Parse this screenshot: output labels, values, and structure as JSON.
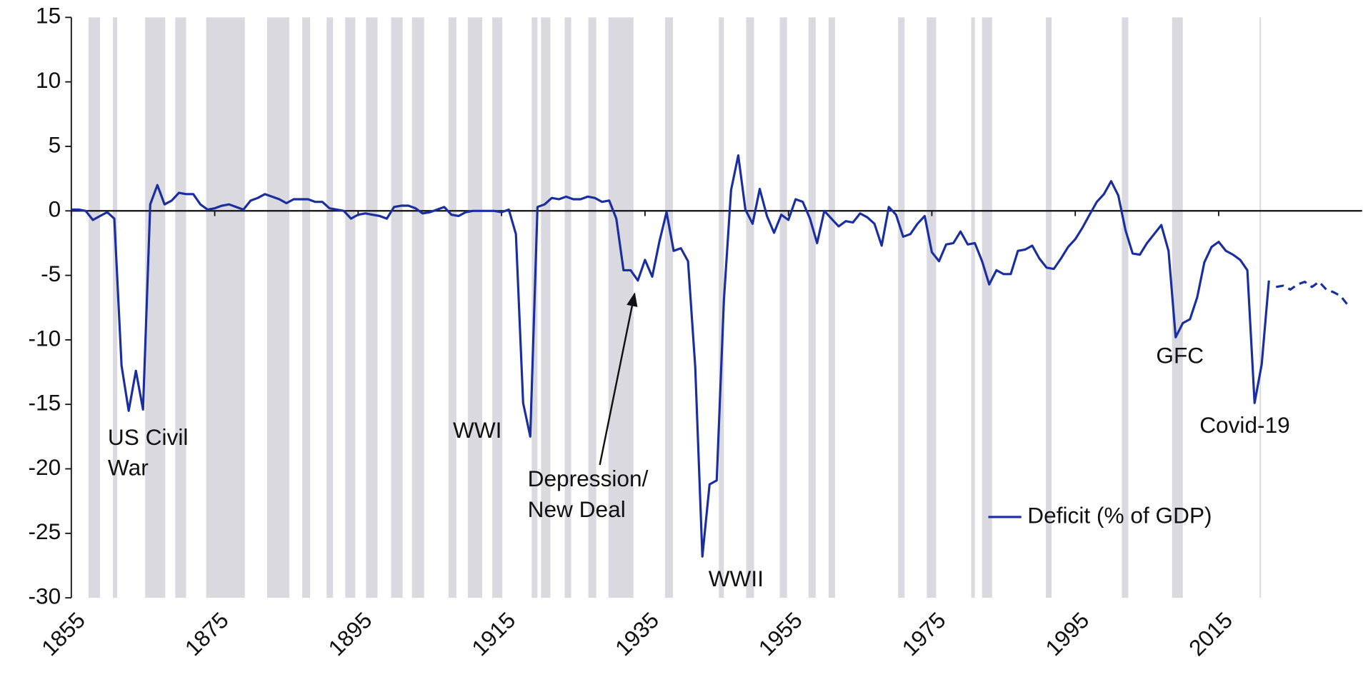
{
  "chart_data": {
    "type": "line",
    "x": [
      1855,
      1856,
      1857,
      1858,
      1859,
      1860,
      1861,
      1862,
      1863,
      1864,
      1865,
      1866,
      1867,
      1868,
      1869,
      1870,
      1871,
      1872,
      1873,
      1874,
      1875,
      1876,
      1877,
      1878,
      1879,
      1880,
      1881,
      1882,
      1883,
      1884,
      1885,
      1886,
      1887,
      1888,
      1889,
      1890,
      1891,
      1892,
      1893,
      1894,
      1895,
      1896,
      1897,
      1898,
      1899,
      1900,
      1901,
      1902,
      1903,
      1904,
      1905,
      1906,
      1907,
      1908,
      1909,
      1910,
      1911,
      1912,
      1913,
      1914,
      1915,
      1916,
      1917,
      1918,
      1919,
      1920,
      1921,
      1922,
      1923,
      1924,
      1925,
      1926,
      1927,
      1928,
      1929,
      1930,
      1931,
      1932,
      1933,
      1934,
      1935,
      1936,
      1937,
      1938,
      1939,
      1940,
      1941,
      1942,
      1943,
      1944,
      1945,
      1946,
      1947,
      1948,
      1949,
      1950,
      1951,
      1952,
      1953,
      1954,
      1955,
      1956,
      1957,
      1958,
      1959,
      1960,
      1961,
      1962,
      1963,
      1964,
      1965,
      1966,
      1967,
      1968,
      1969,
      1970,
      1971,
      1972,
      1973,
      1974,
      1975,
      1976,
      1977,
      1978,
      1979,
      1980,
      1981,
      1982,
      1983,
      1984,
      1985,
      1986,
      1987,
      1988,
      1989,
      1990,
      1991,
      1992,
      1993,
      1994,
      1995,
      1996,
      1997,
      1998,
      1999,
      2000,
      2001,
      2002,
      2003,
      2004,
      2005,
      2006,
      2007,
      2008,
      2009,
      2010,
      2011,
      2012,
      2013,
      2014,
      2015,
      2016,
      2017,
      2018,
      2019,
      2020,
      2021,
      2022,
      2023,
      2024,
      2025,
      2026,
      2027,
      2028,
      2029,
      2030,
      2031,
      2032,
      2033
    ],
    "series": [
      {
        "name": "Deficit (% of GDP)",
        "color": "#1a2ea0",
        "values": [
          0.1,
          0.1,
          0,
          -0.7,
          -0.4,
          -0.1,
          -0.6,
          -12,
          -15.5,
          -12.4,
          -15.4,
          0.5,
          2.0,
          0.5,
          0.8,
          1.4,
          1.3,
          1.3,
          0.5,
          0.1,
          0.2,
          0.4,
          0.5,
          0.3,
          0.1,
          0.8,
          1.0,
          1.3,
          1.1,
          0.9,
          0.6,
          0.9,
          0.9,
          0.9,
          0.7,
          0.7,
          0.2,
          0.1,
          0.0,
          -0.6,
          -0.3,
          -0.2,
          -0.3,
          -0.4,
          -0.6,
          0.3,
          0.4,
          0.4,
          0.2,
          -0.2,
          -0.1,
          0.1,
          0.3,
          -0.3,
          -0.4,
          -0.1,
          0,
          0,
          0,
          0,
          -0.1,
          0.1,
          -1.8,
          -14.9,
          -17.5,
          0.3,
          0.5,
          1.0,
          0.9,
          1.1,
          0.9,
          0.9,
          1.1,
          1.0,
          0.7,
          0.8,
          -0.6,
          -4.6,
          -4.6,
          -5.4,
          -3.8,
          -5.1,
          -2.4,
          -0.1,
          -3.1,
          -2.9,
          -3.9,
          -12.1,
          -26.8,
          -21.2,
          -20.9,
          -6.9,
          1.6,
          4.3,
          0.1,
          -1.0,
          1.7,
          -0.4,
          -1.7,
          -0.3,
          -0.7,
          0.9,
          0.7,
          -0.6,
          -2.5,
          0.0,
          -0.6,
          -1.2,
          -0.8,
          -0.9,
          -0.2,
          -0.5,
          -1.0,
          -2.7,
          0.3,
          -0.3,
          -2.0,
          -1.8,
          -1.0,
          -0.4,
          -3.2,
          -3.9,
          -2.6,
          -2.5,
          -1.6,
          -2.6,
          -2.5,
          -3.9,
          -5.7,
          -4.6,
          -4.9,
          -4.9,
          -3.1,
          -3.0,
          -2.7,
          -3.7,
          -4.4,
          -4.5,
          -3.7,
          -2.8,
          -2.2,
          -1.3,
          -0.3,
          0.7,
          1.3,
          2.3,
          1.2,
          -1.5,
          -3.3,
          -3.4,
          -2.5,
          -1.8,
          -1.1,
          -3.1,
          -9.8,
          -8.7,
          -8.4,
          -6.7,
          -4.0,
          -2.8,
          -2.4,
          -3.1,
          -3.4,
          -3.8,
          -4.6,
          -14.9,
          -11.9,
          -5.4,
          null,
          null,
          null,
          null,
          null,
          null,
          null,
          null,
          null,
          null,
          null
        ]
      },
      {
        "color": "#1a2ea0",
        "dash": true,
        "values": [
          null,
          null,
          null,
          null,
          null,
          null,
          null,
          null,
          null,
          null,
          null,
          null,
          null,
          null,
          null,
          null,
          null,
          null,
          null,
          null,
          null,
          null,
          null,
          null,
          null,
          null,
          null,
          null,
          null,
          null,
          null,
          null,
          null,
          null,
          null,
          null,
          null,
          null,
          null,
          null,
          null,
          null,
          null,
          null,
          null,
          null,
          null,
          null,
          null,
          null,
          null,
          null,
          null,
          null,
          null,
          null,
          null,
          null,
          null,
          null,
          null,
          null,
          null,
          null,
          null,
          null,
          null,
          null,
          null,
          null,
          null,
          null,
          null,
          null,
          null,
          null,
          null,
          null,
          null,
          null,
          null,
          null,
          null,
          null,
          null,
          null,
          null,
          null,
          null,
          null,
          null,
          null,
          null,
          null,
          null,
          null,
          null,
          null,
          null,
          null,
          null,
          null,
          null,
          null,
          null,
          null,
          null,
          null,
          null,
          null,
          null,
          null,
          null,
          null,
          null,
          null,
          null,
          null,
          null,
          null,
          null,
          null,
          null,
          null,
          null,
          null,
          null,
          null,
          null,
          null,
          null,
          null,
          null,
          null,
          null,
          null,
          null,
          null,
          null,
          null,
          null,
          null,
          null,
          null,
          null,
          null,
          null,
          null,
          null,
          null,
          null,
          null,
          null,
          null,
          null,
          null,
          null,
          null,
          null,
          null,
          null,
          null,
          null,
          null,
          null,
          null,
          null,
          null,
          -5.9,
          -5.8,
          -6.1,
          -5.7,
          -5.5,
          -5.9,
          -5.5,
          -6.1,
          -6.3,
          -6.6,
          -7.3
        ]
      }
    ],
    "shaded_periods": [
      [
        1857.4,
        1859
      ],
      [
        1860.8,
        1861.4
      ],
      [
        1865.3,
        1868.1
      ],
      [
        1869.5,
        1871
      ],
      [
        1873.8,
        1879.2
      ],
      [
        1882.3,
        1885.4
      ],
      [
        1887.2,
        1888.3
      ],
      [
        1890.6,
        1891.5
      ],
      [
        1893.2,
        1894.6
      ],
      [
        1896.1,
        1897.7
      ],
      [
        1899.6,
        1901.2
      ],
      [
        1902.5,
        1904.2
      ],
      [
        1907.6,
        1908.7
      ],
      [
        1910.3,
        1912.3
      ],
      [
        1913.7,
        1915.1
      ],
      [
        1919.2,
        1920
      ],
      [
        1920.5,
        1921.8
      ],
      [
        1923.8,
        1924.7
      ],
      [
        1927.1,
        1928.2
      ],
      [
        1929.9,
        1933.4
      ],
      [
        1937.8,
        1938.9
      ],
      [
        1945.3,
        1946
      ],
      [
        1949.1,
        1950.2
      ],
      [
        1953.8,
        1954.8
      ],
      [
        1957.8,
        1958.8
      ],
      [
        1960.6,
        1961.5
      ],
      [
        1970.3,
        1971.2
      ],
      [
        1974.3,
        1975.6
      ],
      [
        1980.5,
        1981
      ],
      [
        1982,
        1983.4
      ],
      [
        1990.9,
        1991.7
      ],
      [
        2001.5,
        2002.4
      ],
      [
        2008.5,
        2010
      ],
      [
        2020.7,
        2020.9
      ]
    ],
    "shade_color": "#d9d9df",
    "annotations": [
      {
        "lines": [
          "US Civil",
          "War"
        ]
      },
      {
        "lines": [
          "WWI"
        ]
      },
      {
        "lines": [
          "Depression/",
          "New Deal"
        ]
      },
      {
        "lines": [
          "WWII"
        ]
      },
      {
        "lines": [
          "GFC"
        ]
      },
      {
        "lines": [
          "Covid-19"
        ]
      }
    ],
    "xlim": [
      1855,
      2035
    ],
    "xticks": [
      1855,
      1875,
      1895,
      1915,
      1935,
      1955,
      1975,
      1995,
      2015
    ],
    "ylim": [
      -30,
      15
    ],
    "yticks": [
      -30,
      -25,
      -20,
      -15,
      -10,
      -5,
      0,
      5,
      10,
      15
    ],
    "legend": "lower right"
  }
}
